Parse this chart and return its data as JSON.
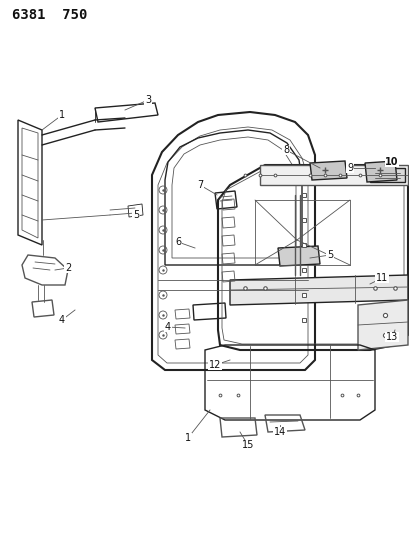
{
  "title": "6381  750",
  "bg_color": "#ffffff",
  "lc": "#555555",
  "lc_dark": "#222222",
  "title_fontsize": 10,
  "fig_width": 4.1,
  "fig_height": 5.33,
  "dpi": 100
}
